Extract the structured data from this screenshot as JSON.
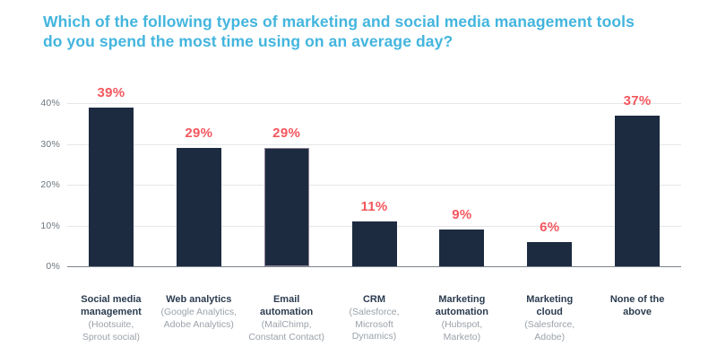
{
  "title": "Which of the following types of marketing and social media management tools\ndo you spend the most time using on an average day?",
  "colors": {
    "title": "#43b5de",
    "bar": "#1d2b40",
    "bar_highlight_border": "#8d8197",
    "value_label": "#f4575e",
    "y_tick_label": "#6d757d",
    "gridline": "#e4e6e9",
    "baseline": "#7b838c",
    "category_label": "#2b3c50",
    "category_sublabel": "#9ba2a9",
    "background": "#ffffff"
  },
  "chart_data": {
    "type": "bar",
    "title": "Which of the following types of marketing and social media management tools do you spend the most time using on an average day?",
    "categories": [
      "Social media management",
      "Web analytics",
      "Email automation",
      "CRM",
      "Marketing automation",
      "Marketing cloud",
      "None of the above"
    ],
    "sub_labels": [
      "(Hootsuite, Sprout social)",
      "(Google Analytics, Adobe Analytics)",
      "(MailChimp, Constant Contact)",
      "(Salesforce, Microsoft Dynamics)",
      "(Hubspot, Marketo)",
      "(Salesforce, Adobe)",
      ""
    ],
    "values": [
      39,
      29,
      29,
      11,
      9,
      6,
      37
    ],
    "value_labels": [
      "39%",
      "29%",
      "29%",
      "11%",
      "9%",
      "6%",
      "37%"
    ],
    "highlighted_index": 2,
    "xlabel": "",
    "ylabel": "",
    "ylim": [
      0,
      40
    ],
    "ytick_values": [
      0,
      10,
      20,
      30,
      40
    ],
    "ytick_labels": [
      "0%",
      "10%",
      "20%",
      "30%",
      "40%"
    ],
    "grid": true,
    "legend_position": "none"
  }
}
